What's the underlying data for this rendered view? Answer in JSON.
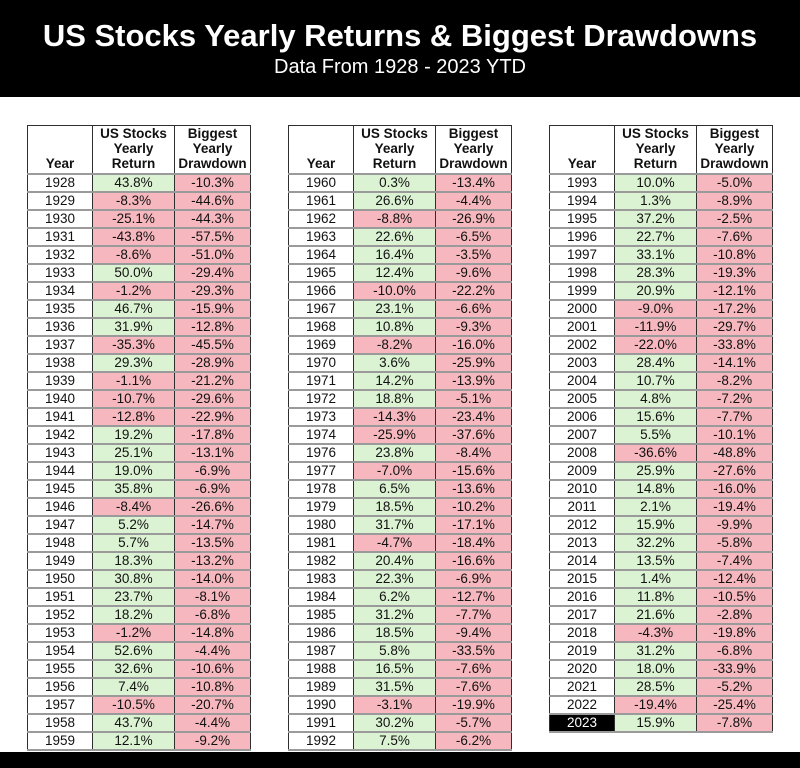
{
  "chart_data": {
    "type": "table",
    "title": "US Stocks Yearly Returns & Biggest Drawdowns",
    "subtitle": "Data From 1928 - 2023 YTD",
    "columns": [
      "Year",
      "US Stocks Yearly Return",
      "Biggest Yearly Drawdown"
    ],
    "column_header_lines": [
      [
        "Year"
      ],
      [
        "US Stocks",
        "Yearly",
        "Return"
      ],
      [
        "Biggest",
        "Yearly",
        "Drawdown"
      ]
    ],
    "highlighted_year": "2023",
    "tables": [
      {
        "rows": [
          [
            "1928",
            "43.8%",
            "-10.3%"
          ],
          [
            "1929",
            "-8.3%",
            "-44.6%"
          ],
          [
            "1930",
            "-25.1%",
            "-44.3%"
          ],
          [
            "1931",
            "-43.8%",
            "-57.5%"
          ],
          [
            "1932",
            "-8.6%",
            "-51.0%"
          ],
          [
            "1933",
            "50.0%",
            "-29.4%"
          ],
          [
            "1934",
            "-1.2%",
            "-29.3%"
          ],
          [
            "1935",
            "46.7%",
            "-15.9%"
          ],
          [
            "1936",
            "31.9%",
            "-12.8%"
          ],
          [
            "1937",
            "-35.3%",
            "-45.5%"
          ],
          [
            "1938",
            "29.3%",
            "-28.9%"
          ],
          [
            "1939",
            "-1.1%",
            "-21.2%"
          ],
          [
            "1940",
            "-10.7%",
            "-29.6%"
          ],
          [
            "1941",
            "-12.8%",
            "-22.9%"
          ],
          [
            "1942",
            "19.2%",
            "-17.8%"
          ],
          [
            "1943",
            "25.1%",
            "-13.1%"
          ],
          [
            "1944",
            "19.0%",
            "-6.9%"
          ],
          [
            "1945",
            "35.8%",
            "-6.9%"
          ],
          [
            "1946",
            "-8.4%",
            "-26.6%"
          ],
          [
            "1947",
            "5.2%",
            "-14.7%"
          ],
          [
            "1948",
            "5.7%",
            "-13.5%"
          ],
          [
            "1949",
            "18.3%",
            "-13.2%"
          ],
          [
            "1950",
            "30.8%",
            "-14.0%"
          ],
          [
            "1951",
            "23.7%",
            "-8.1%"
          ],
          [
            "1952",
            "18.2%",
            "-6.8%"
          ],
          [
            "1953",
            "-1.2%",
            "-14.8%"
          ],
          [
            "1954",
            "52.6%",
            "-4.4%"
          ],
          [
            "1955",
            "32.6%",
            "-10.6%"
          ],
          [
            "1956",
            "7.4%",
            "-10.8%"
          ],
          [
            "1957",
            "-10.5%",
            "-20.7%"
          ],
          [
            "1958",
            "43.7%",
            "-4.4%"
          ],
          [
            "1959",
            "12.1%",
            "-9.2%"
          ]
        ]
      },
      {
        "rows": [
          [
            "1960",
            "0.3%",
            "-13.4%"
          ],
          [
            "1961",
            "26.6%",
            "-4.4%"
          ],
          [
            "1962",
            "-8.8%",
            "-26.9%"
          ],
          [
            "1963",
            "22.6%",
            "-6.5%"
          ],
          [
            "1964",
            "16.4%",
            "-3.5%"
          ],
          [
            "1965",
            "12.4%",
            "-9.6%"
          ],
          [
            "1966",
            "-10.0%",
            "-22.2%"
          ],
          [
            "1967",
            "23.1%",
            "-6.6%"
          ],
          [
            "1968",
            "10.8%",
            "-9.3%"
          ],
          [
            "1969",
            "-8.2%",
            "-16.0%"
          ],
          [
            "1970",
            "3.6%",
            "-25.9%"
          ],
          [
            "1971",
            "14.2%",
            "-13.9%"
          ],
          [
            "1972",
            "18.8%",
            "-5.1%"
          ],
          [
            "1973",
            "-14.3%",
            "-23.4%"
          ],
          [
            "1974",
            "-25.9%",
            "-37.6%"
          ],
          [
            "1976",
            "23.8%",
            "-8.4%"
          ],
          [
            "1977",
            "-7.0%",
            "-15.6%"
          ],
          [
            "1978",
            "6.5%",
            "-13.6%"
          ],
          [
            "1979",
            "18.5%",
            "-10.2%"
          ],
          [
            "1980",
            "31.7%",
            "-17.1%"
          ],
          [
            "1981",
            "-4.7%",
            "-18.4%"
          ],
          [
            "1982",
            "20.4%",
            "-16.6%"
          ],
          [
            "1983",
            "22.3%",
            "-6.9%"
          ],
          [
            "1984",
            "6.2%",
            "-12.7%"
          ],
          [
            "1985",
            "31.2%",
            "-7.7%"
          ],
          [
            "1986",
            "18.5%",
            "-9.4%"
          ],
          [
            "1987",
            "5.8%",
            "-33.5%"
          ],
          [
            "1988",
            "16.5%",
            "-7.6%"
          ],
          [
            "1989",
            "31.5%",
            "-7.6%"
          ],
          [
            "1990",
            "-3.1%",
            "-19.9%"
          ],
          [
            "1991",
            "30.2%",
            "-5.7%"
          ],
          [
            "1992",
            "7.5%",
            "-6.2%"
          ]
        ]
      },
      {
        "rows": [
          [
            "1993",
            "10.0%",
            "-5.0%"
          ],
          [
            "1994",
            "1.3%",
            "-8.9%"
          ],
          [
            "1995",
            "37.2%",
            "-2.5%"
          ],
          [
            "1996",
            "22.7%",
            "-7.6%"
          ],
          [
            "1997",
            "33.1%",
            "-10.8%"
          ],
          [
            "1998",
            "28.3%",
            "-19.3%"
          ],
          [
            "1999",
            "20.9%",
            "-12.1%"
          ],
          [
            "2000",
            "-9.0%",
            "-17.2%"
          ],
          [
            "2001",
            "-11.9%",
            "-29.7%"
          ],
          [
            "2002",
            "-22.0%",
            "-33.8%"
          ],
          [
            "2003",
            "28.4%",
            "-14.1%"
          ],
          [
            "2004",
            "10.7%",
            "-8.2%"
          ],
          [
            "2005",
            "4.8%",
            "-7.2%"
          ],
          [
            "2006",
            "15.6%",
            "-7.7%"
          ],
          [
            "2007",
            "5.5%",
            "-10.1%"
          ],
          [
            "2008",
            "-36.6%",
            "-48.8%"
          ],
          [
            "2009",
            "25.9%",
            "-27.6%"
          ],
          [
            "2010",
            "14.8%",
            "-16.0%"
          ],
          [
            "2011",
            "2.1%",
            "-19.4%"
          ],
          [
            "2012",
            "15.9%",
            "-9.9%"
          ],
          [
            "2013",
            "32.2%",
            "-5.8%"
          ],
          [
            "2014",
            "13.5%",
            "-7.4%"
          ],
          [
            "2015",
            "1.4%",
            "-12.4%"
          ],
          [
            "2016",
            "11.8%",
            "-10.5%"
          ],
          [
            "2017",
            "21.6%",
            "-2.8%"
          ],
          [
            "2018",
            "-4.3%",
            "-19.8%"
          ],
          [
            "2019",
            "31.2%",
            "-6.8%"
          ],
          [
            "2020",
            "18.0%",
            "-33.9%"
          ],
          [
            "2021",
            "28.5%",
            "-5.2%"
          ],
          [
            "2022",
            "-19.4%",
            "-25.4%"
          ],
          [
            "2023",
            "15.9%",
            "-7.8%"
          ]
        ]
      }
    ]
  },
  "colors": {
    "banner_bg": "#000000",
    "banner_text": "#ffffff",
    "page_bg": "#ffffff",
    "positive_cell": "#dcf3d3",
    "negative_cell": "#f6b8be",
    "year_cell": "#ffffff",
    "highlight_year_bg": "#000000",
    "highlight_year_text": "#ffffff",
    "grid_dark": "#2f2f2f",
    "grid_gray": "#9a9a9a",
    "cell_text": "#111111"
  }
}
